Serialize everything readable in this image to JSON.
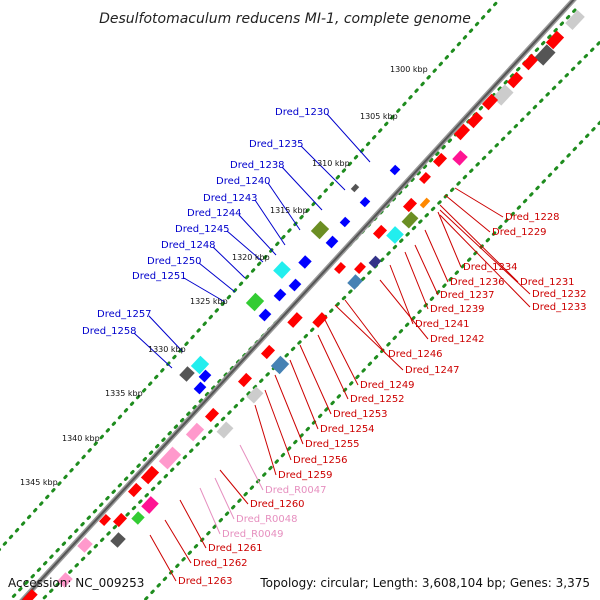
{
  "title": "Desulfotomaculum reducens MI-1, complete genome",
  "accession": "Accession: NC_009253",
  "topology": "Topology: circular; Length: 3,608,104 bp; Genes: 3,375",
  "colors": {
    "backbone": "#666666",
    "dots": "#1e8c1e",
    "label_blue": "#0000cc",
    "label_red": "#cc0000",
    "label_pink": "#e68fbf",
    "feat_red": "#ff0000",
    "feat_blue": "#0000ff",
    "feat_cyan": "#22eeee",
    "feat_green": "#33cc33",
    "feat_olive": "#6b8e23",
    "feat_gray": "#999999",
    "feat_light": "#cccccc",
    "feat_pink": "#ff99cc",
    "feat_magenta": "#ff1493",
    "feat_steel": "#4682b4",
    "feat_orange": "#ff8800",
    "feat_dkgray": "#555555",
    "feat_navy": "#333388"
  },
  "ticks": [
    {
      "label": "1300 kbp"
    },
    {
      "label": "1305 kbp"
    },
    {
      "label": "1310 kbp"
    },
    {
      "label": "1315 kbp"
    },
    {
      "label": "1320 kbp"
    },
    {
      "label": "1325 kbp"
    },
    {
      "label": "1330 kbp"
    },
    {
      "label": "1335 kbp"
    },
    {
      "label": "1340 kbp"
    },
    {
      "label": "1345 kbp"
    }
  ],
  "left_labels": [
    {
      "text": "Dred_1230",
      "color": "blue"
    },
    {
      "text": "Dred_1235",
      "color": "blue"
    },
    {
      "text": "Dred_1238",
      "color": "blue"
    },
    {
      "text": "Dred_1240",
      "color": "blue"
    },
    {
      "text": "Dred_1243",
      "color": "blue"
    },
    {
      "text": "Dred_1244",
      "color": "blue"
    },
    {
      "text": "Dred_1245",
      "color": "blue"
    },
    {
      "text": "Dred_1248",
      "color": "blue"
    },
    {
      "text": "Dred_1250",
      "color": "blue"
    },
    {
      "text": "Dred_1251",
      "color": "blue"
    },
    {
      "text": "Dred_1257",
      "color": "blue"
    },
    {
      "text": "Dred_1258",
      "color": "blue"
    }
  ],
  "right_labels": [
    {
      "text": "Dred_1228",
      "color": "red"
    },
    {
      "text": "Dred_1229",
      "color": "red"
    },
    {
      "text": "Dred_1234",
      "color": "red"
    },
    {
      "text": "Dred_1231",
      "color": "red"
    },
    {
      "text": "Dred_1236",
      "color": "red"
    },
    {
      "text": "Dred_1232",
      "color": "red"
    },
    {
      "text": "Dred_1237",
      "color": "red"
    },
    {
      "text": "Dred_1233",
      "color": "red"
    },
    {
      "text": "Dred_1239",
      "color": "red"
    },
    {
      "text": "Dred_1241",
      "color": "red"
    },
    {
      "text": "Dred_1242",
      "color": "red"
    },
    {
      "text": "Dred_1246",
      "color": "red"
    },
    {
      "text": "Dred_1247",
      "color": "red"
    },
    {
      "text": "Dred_1249",
      "color": "red"
    },
    {
      "text": "Dred_1252",
      "color": "red"
    },
    {
      "text": "Dred_1253",
      "color": "red"
    },
    {
      "text": "Dred_1254",
      "color": "red"
    },
    {
      "text": "Dred_1255",
      "color": "red"
    },
    {
      "text": "Dred_1256",
      "color": "red"
    },
    {
      "text": "Dred_1259",
      "color": "red"
    },
    {
      "text": "Dred_R0047",
      "color": "pink"
    },
    {
      "text": "Dred_1260",
      "color": "red"
    },
    {
      "text": "Dred_R0048",
      "color": "pink"
    },
    {
      "text": "Dred_R0049",
      "color": "pink"
    },
    {
      "text": "Dred_1261",
      "color": "red"
    },
    {
      "text": "Dred_1262",
      "color": "red"
    },
    {
      "text": "Dred_1263",
      "color": "red"
    }
  ]
}
